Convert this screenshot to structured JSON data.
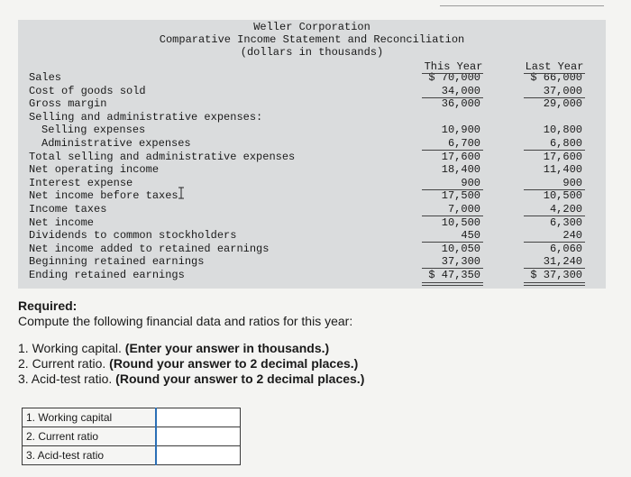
{
  "statement": {
    "company": "Weller Corporation",
    "title": "Comparative Income Statement and Reconciliation",
    "subtitle": "(dollars in thousands)",
    "col_this": "This Year",
    "col_last": "Last Year",
    "rows": [
      {
        "label": "Sales",
        "this": "$ 70,000",
        "last": "$ 66,000"
      },
      {
        "label": "Cost of goods sold",
        "this": "34,000",
        "last": "37,000"
      },
      {
        "label": "Gross margin",
        "this": "36,000",
        "last": "29,000"
      },
      {
        "label": "Selling and administrative expenses:",
        "this": "",
        "last": ""
      },
      {
        "label": "Selling expenses",
        "this": "10,900",
        "last": "10,800"
      },
      {
        "label": "Administrative expenses",
        "this": "6,700",
        "last": "6,800"
      },
      {
        "label": "Total selling and administrative expenses",
        "this": "17,600",
        "last": "17,600"
      },
      {
        "label": "Net operating income",
        "this": "18,400",
        "last": "11,400"
      },
      {
        "label": "Interest expense",
        "this": "900",
        "last": "900"
      },
      {
        "label": "Net income before taxes",
        "this": "17,500",
        "last": "10,500"
      },
      {
        "label": "Income taxes",
        "this": "7,000",
        "last": "4,200"
      },
      {
        "label": "Net income",
        "this": "10,500",
        "last": "6,300"
      },
      {
        "label": "Dividends to common stockholders",
        "this": "450",
        "last": "240"
      },
      {
        "label": "Net income added to retained earnings",
        "this": "10,050",
        "last": "6,060"
      },
      {
        "label": "Beginning retained earnings",
        "this": "37,300",
        "last": "31,240"
      },
      {
        "label": "Ending retained earnings",
        "this": "$ 47,350",
        "last": "$ 37,300"
      }
    ]
  },
  "required": {
    "heading": "Required:",
    "text": "Compute the following financial data and ratios for this year:",
    "items": [
      {
        "text": "1. Working capital. ",
        "bold": "(Enter your answer in thousands.)"
      },
      {
        "text": "2. Current ratio. ",
        "bold": "(Round your answer to 2 decimal places.)"
      },
      {
        "text": "3. Acid-test ratio. ",
        "bold": "(Round your answer to 2 decimal places.)"
      }
    ]
  },
  "answers": [
    {
      "label": "1. Working capital",
      "value": ""
    },
    {
      "label": "2. Current ratio",
      "value": ""
    },
    {
      "label": "3. Acid-test ratio",
      "value": ""
    }
  ]
}
